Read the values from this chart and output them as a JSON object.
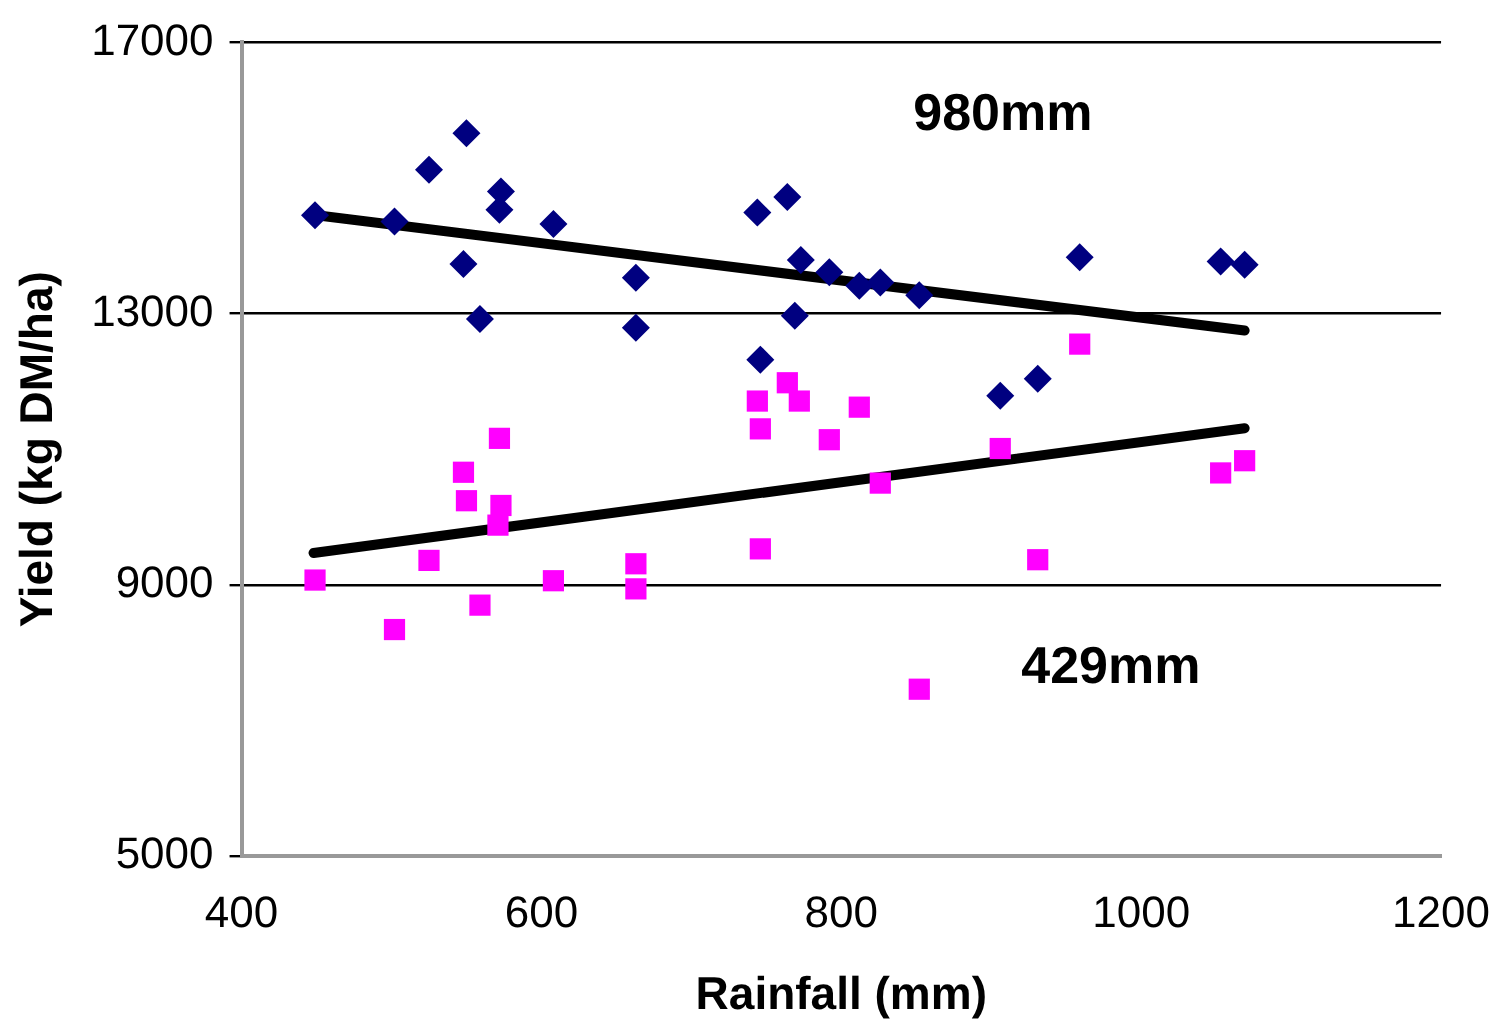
{
  "chart_data": {
    "type": "scatter",
    "xlabel": "Rainfall (mm)",
    "ylabel": "Yield (kg DM/ha)",
    "xlim": [
      400,
      1200
    ],
    "xticks": [
      400,
      600,
      800,
      1000,
      1200
    ],
    "ylim": [
      5000,
      17000
    ],
    "yticks": [
      5000,
      9000,
      13000,
      17000
    ],
    "grid": "y",
    "legend": false,
    "series": [
      {
        "name": "980mm",
        "color": "#000080",
        "marker": "diamond",
        "x": [
          449,
          502,
          525,
          550,
          573,
          572,
          548,
          559,
          608,
          663,
          663,
          744,
          764,
          773,
          769,
          746,
          792,
          812,
          826,
          852,
          959,
          906,
          931,
          1053,
          1069
        ],
        "values": [
          14450,
          14360,
          15120,
          15660,
          14800,
          14530,
          13730,
          12920,
          14320,
          13530,
          12790,
          14490,
          14720,
          13790,
          12970,
          12320,
          13610,
          13410,
          13460,
          13270,
          13830,
          11790,
          12040,
          13770,
          13720
        ]
      },
      {
        "name": "429mm",
        "color": "#ff00ff",
        "marker": "square",
        "x": [
          449,
          502,
          525,
          548,
          550,
          572,
          573,
          571,
          559,
          608,
          663,
          663,
          746,
          744,
          746,
          764,
          772,
          792,
          812,
          826,
          906,
          959,
          931,
          1053,
          1069,
          852
        ],
        "values": [
          9070,
          8340,
          9360,
          10660,
          10240,
          11160,
          10170,
          9880,
          8700,
          9060,
          9310,
          8940,
          9530,
          11710,
          11300,
          11980,
          11710,
          11140,
          11620,
          10500,
          11010,
          12550,
          9370,
          10650,
          10830,
          7460
        ]
      },
      {
        "type": "line",
        "color": "#000000",
        "marker": "none",
        "x": [
          450,
          1069
        ],
        "values": [
          14450,
          12750
        ]
      },
      {
        "type": "line",
        "color": "#000000",
        "marker": "none",
        "x": [
          448,
          1069
        ],
        "values": [
          9470,
          11310
        ]
      }
    ]
  }
}
